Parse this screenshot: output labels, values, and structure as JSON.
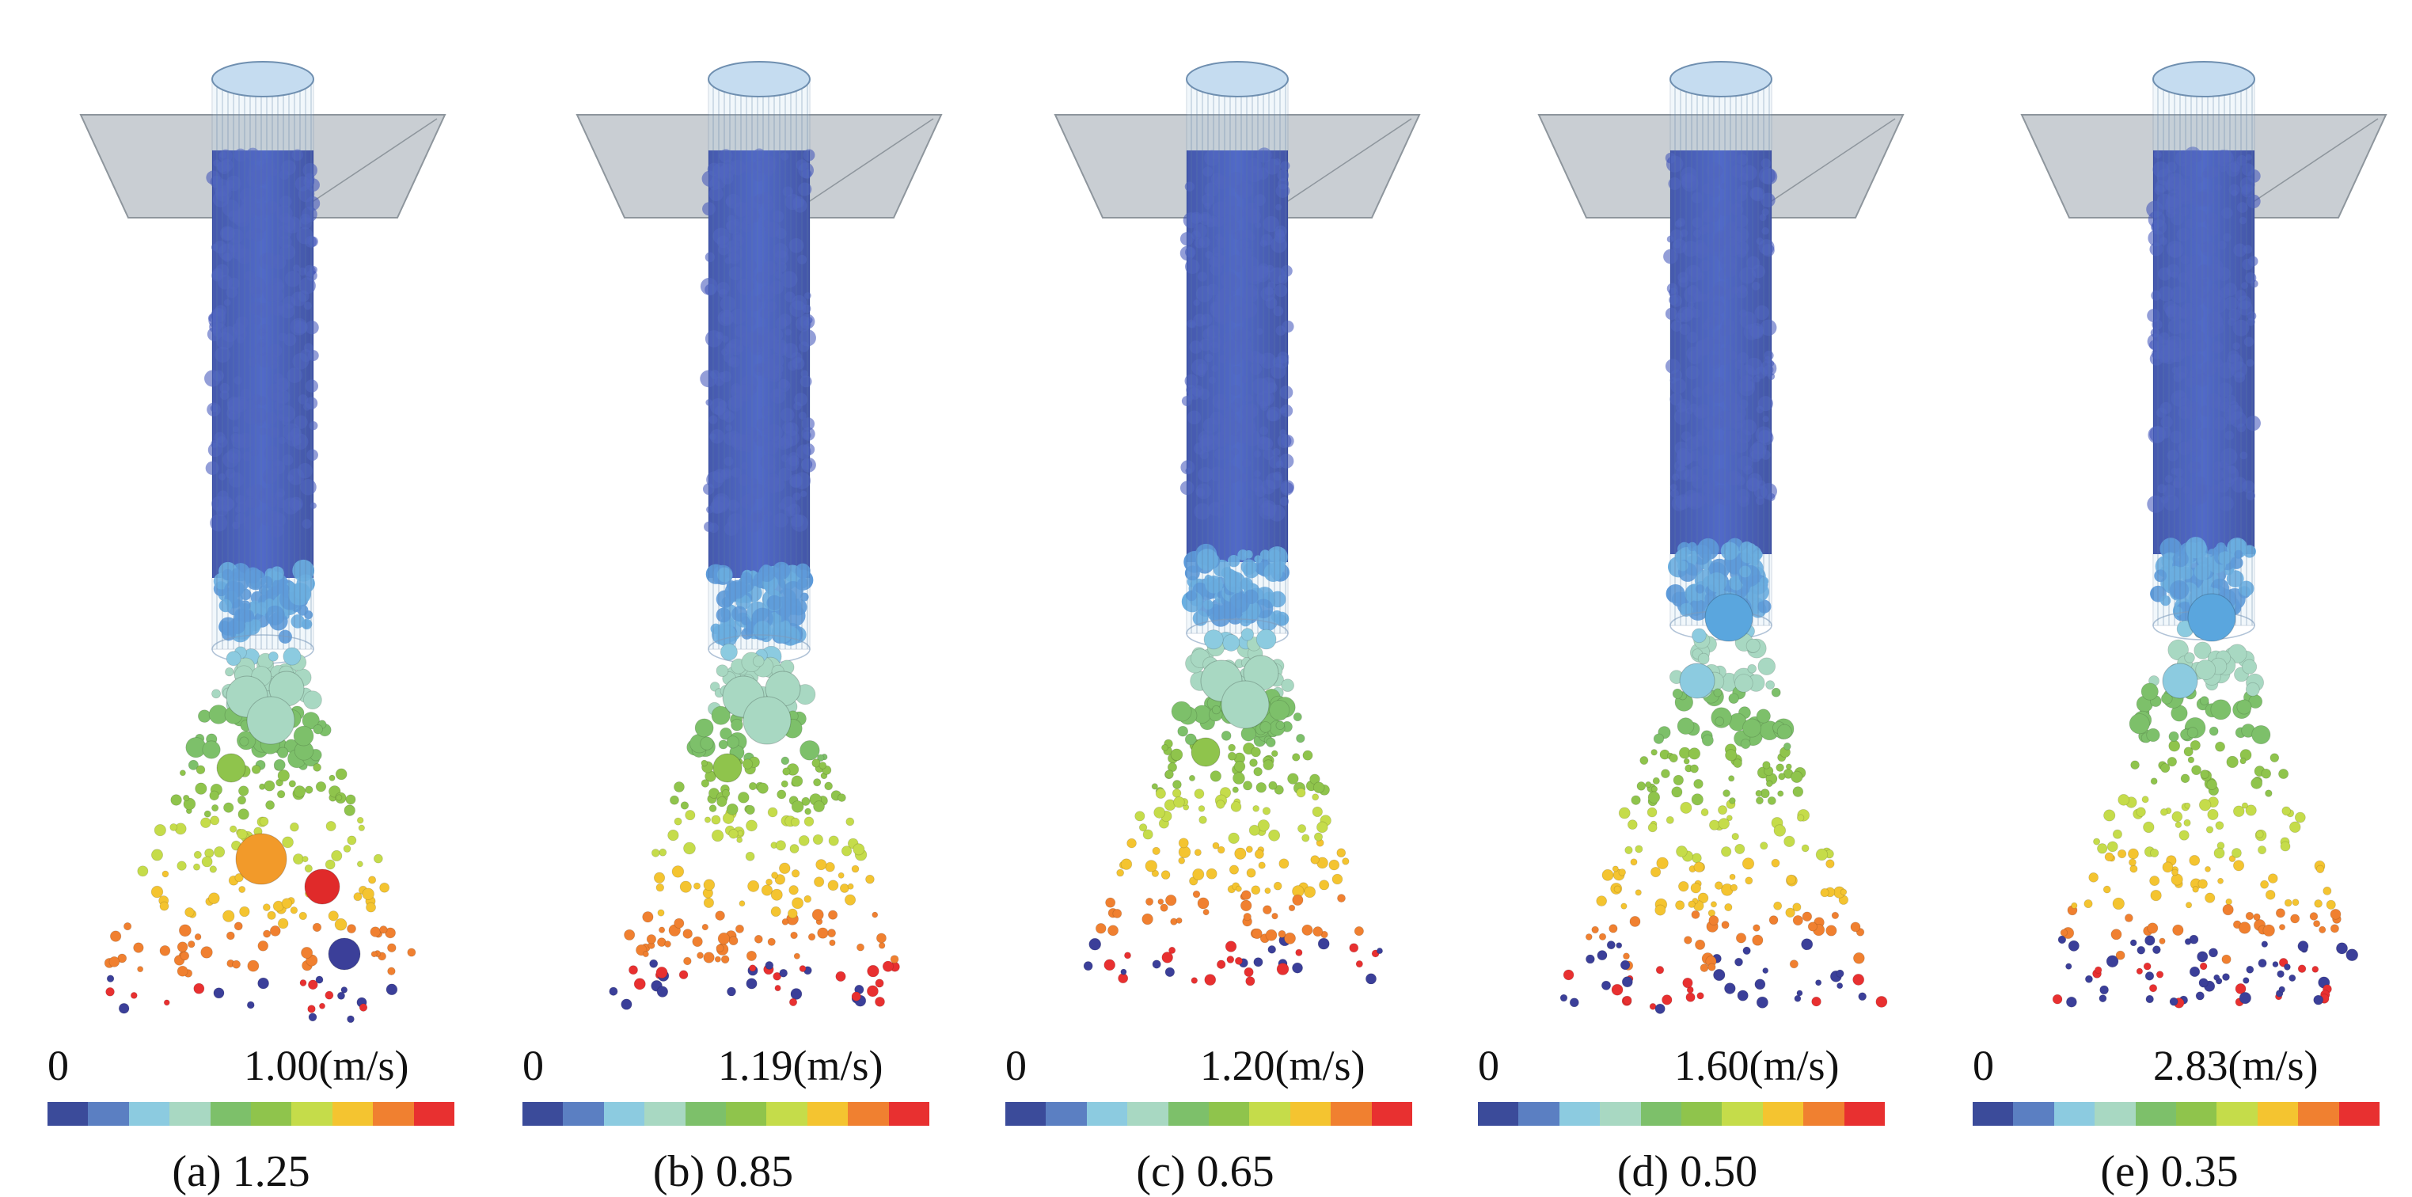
{
  "figure": {
    "colorbar_colors": [
      "#3b4b9a",
      "#5b7fc2",
      "#8ccbe0",
      "#a8d8c2",
      "#7dc06a",
      "#8fc44c",
      "#c5dc4a",
      "#f4c430",
      "#f08030",
      "#e83030"
    ],
    "panels": [
      {
        "min_label": "0",
        "max_label": "1.00(m/s)",
        "caption": "(a) 1.25",
        "tag": "a"
      },
      {
        "min_label": "0",
        "max_label": "1.19(m/s)",
        "caption": "(b) 0.85",
        "tag": "b"
      },
      {
        "min_label": "0",
        "max_label": "1.20(m/s)",
        "caption": "(c) 0.65",
        "tag": "c"
      },
      {
        "min_label": "0",
        "max_label": "1.60(m/s)",
        "caption": "(d) 0.50",
        "tag": "d"
      },
      {
        "min_label": "0",
        "max_label": "2.83(m/s)",
        "caption": "(e) 0.35",
        "tag": "e"
      }
    ]
  }
}
